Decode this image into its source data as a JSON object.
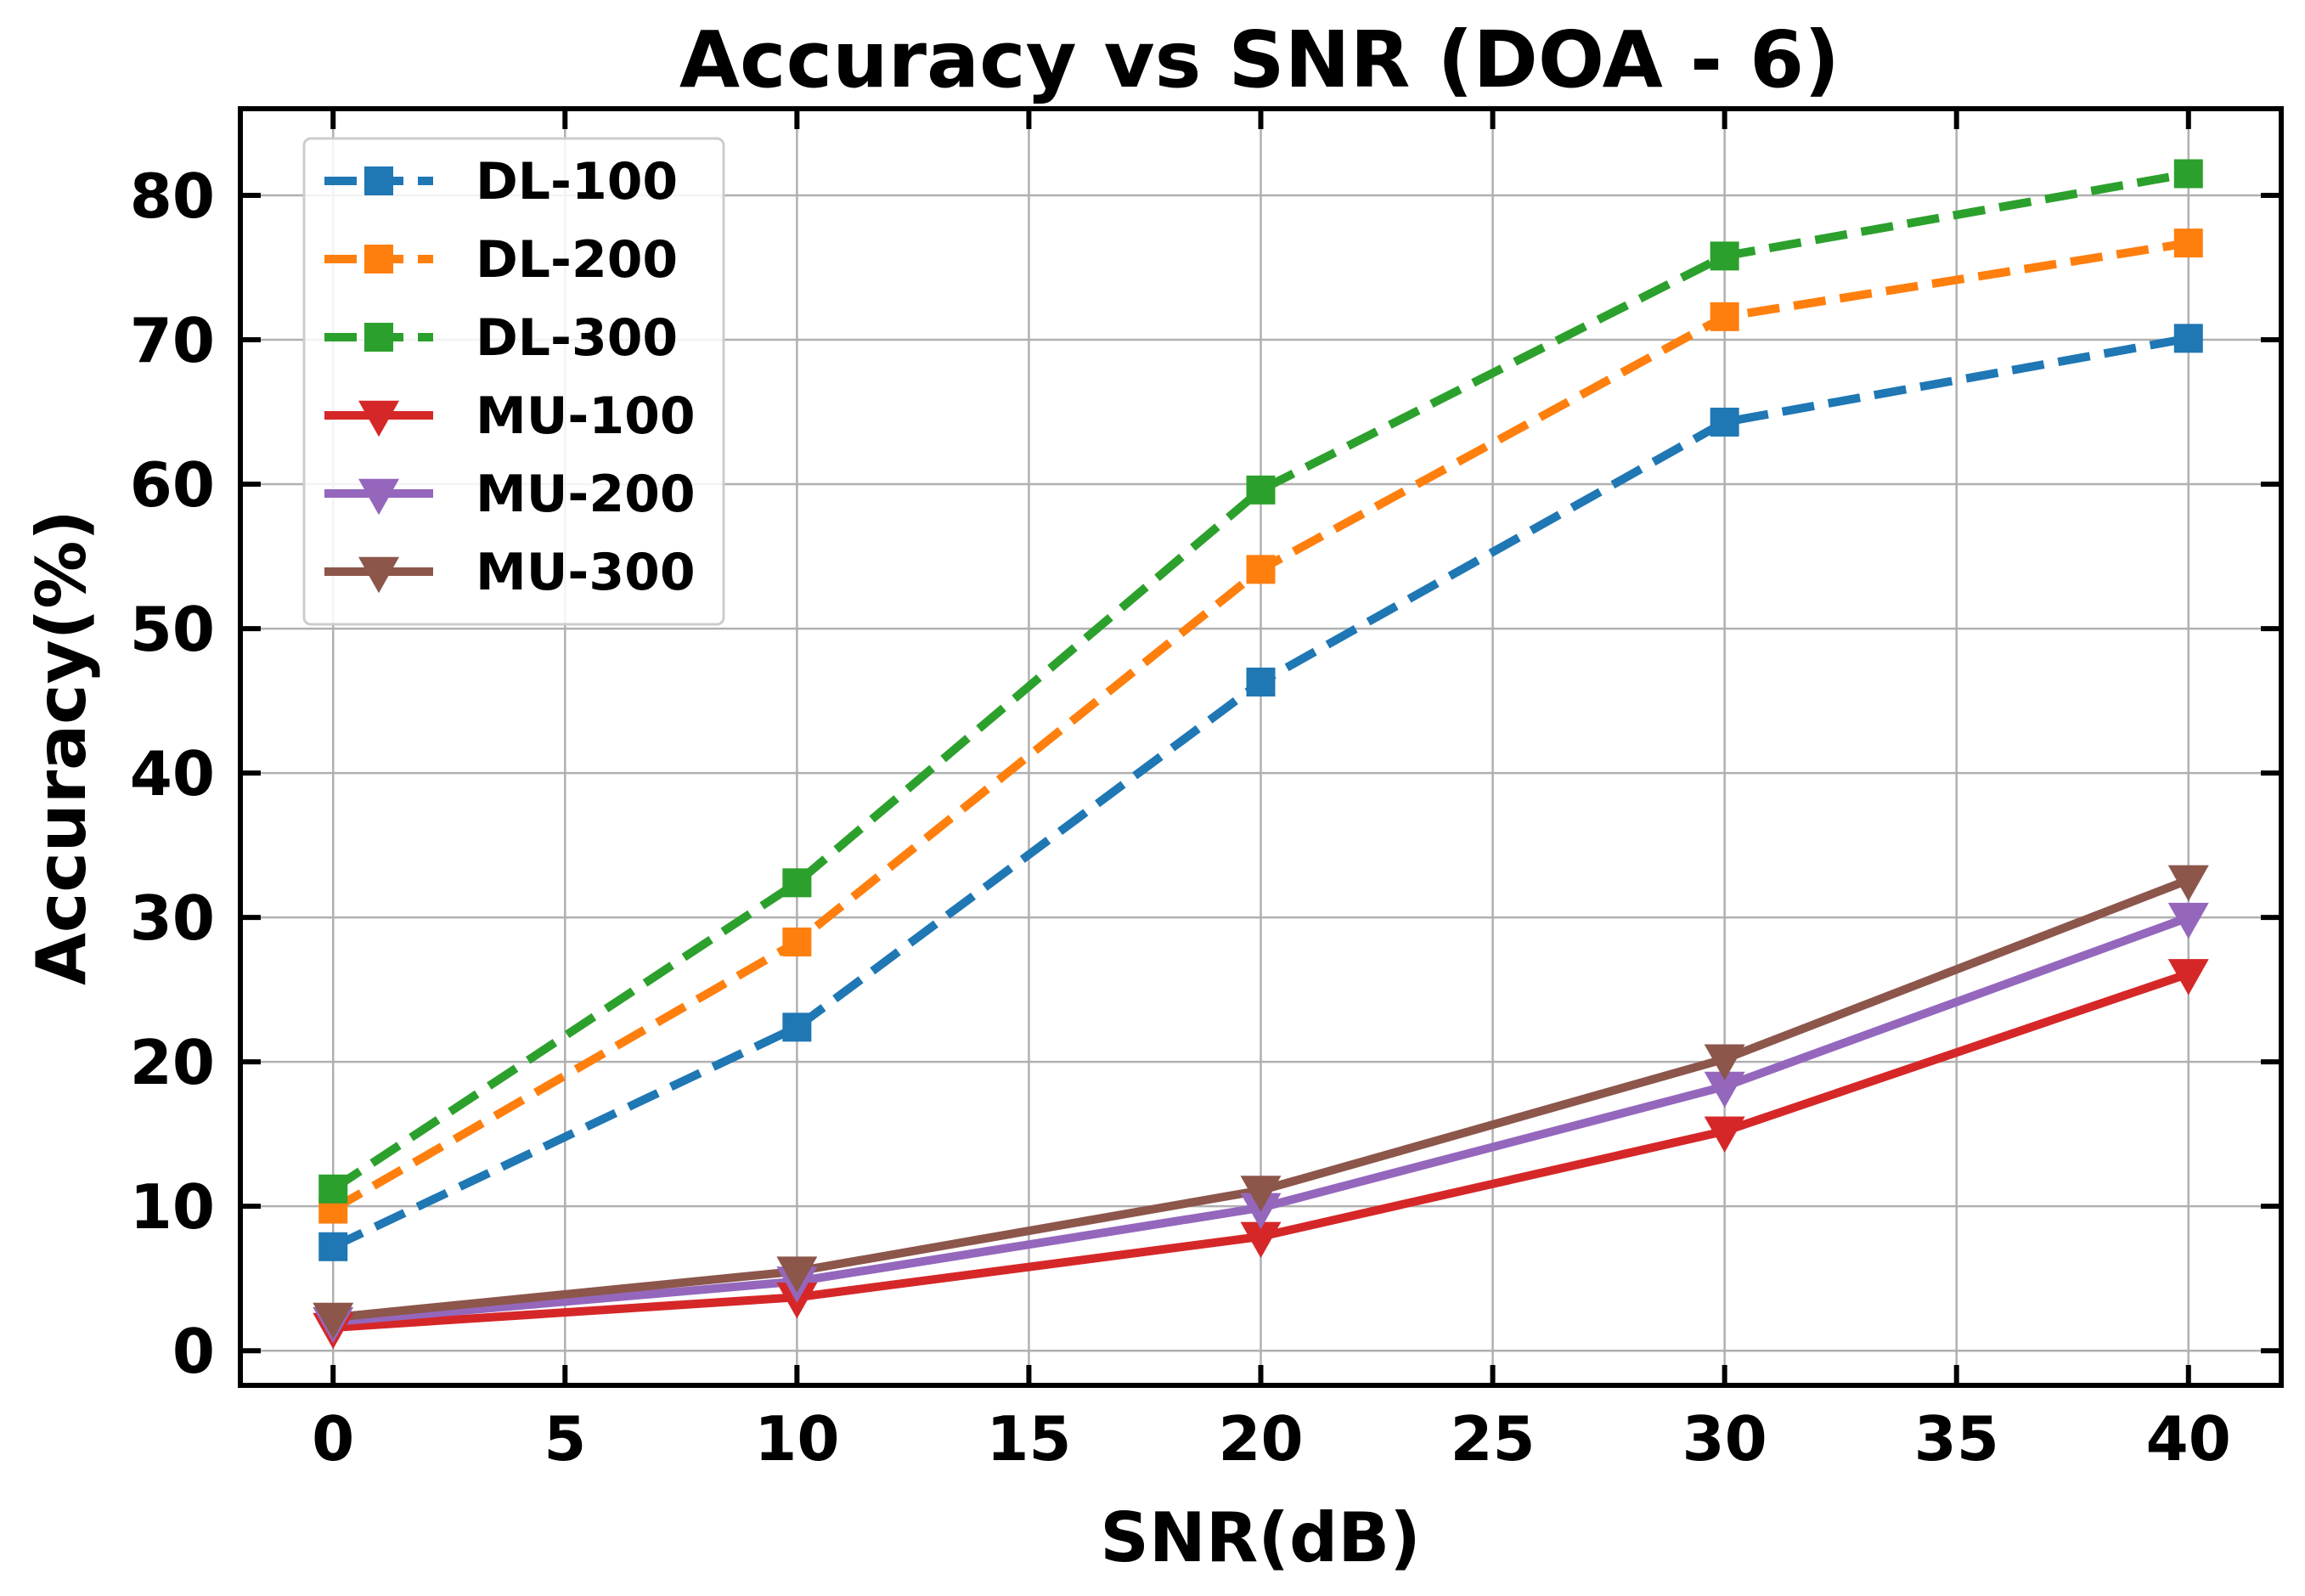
{
  "chart_data": {
    "type": "line",
    "title": "Accuracy vs SNR (DOA - 6)",
    "xlabel": "SNR(dB)",
    "ylabel": "Accuracy(%)",
    "xlim": [
      -2,
      42
    ],
    "ylim": [
      -2.4,
      86
    ],
    "x_ticks": [
      0,
      5,
      10,
      15,
      20,
      25,
      30,
      35,
      40
    ],
    "y_ticks": [
      0,
      10,
      20,
      30,
      40,
      50,
      60,
      70,
      80
    ],
    "grid": true,
    "legend_position": "top-left",
    "x": [
      0,
      10,
      20,
      30,
      40
    ],
    "series": [
      {
        "name": "DL-100",
        "values": [
          7.2,
          22.4,
          46.3,
          64.3,
          70.1
        ],
        "color": "#1f77b4",
        "line_style": "dashed",
        "marker": "square"
      },
      {
        "name": "DL-200",
        "values": [
          9.8,
          28.3,
          54.1,
          71.6,
          76.7
        ],
        "color": "#ff7f0e",
        "line_style": "dashed",
        "marker": "square"
      },
      {
        "name": "DL-300",
        "values": [
          11.2,
          32.4,
          59.6,
          75.8,
          81.5
        ],
        "color": "#2ca02c",
        "line_style": "dashed",
        "marker": "square"
      },
      {
        "name": "MU-100",
        "values": [
          1.6,
          3.7,
          7.9,
          15.2,
          26.1
        ],
        "color": "#d62728",
        "line_style": "solid",
        "marker": "triangle-down"
      },
      {
        "name": "MU-200",
        "values": [
          2.0,
          4.8,
          9.9,
          18.3,
          30.0
        ],
        "color": "#9467bd",
        "line_style": "solid",
        "marker": "triangle-down"
      },
      {
        "name": "MU-300",
        "values": [
          2.3,
          5.5,
          11.1,
          20.2,
          32.6
        ],
        "color": "#8c564b",
        "line_style": "solid",
        "marker": "triangle-down"
      }
    ]
  }
}
